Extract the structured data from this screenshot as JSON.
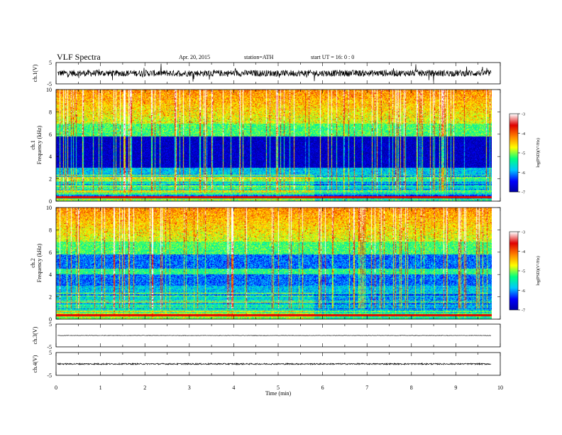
{
  "header": {
    "title": "VLF  Spectra",
    "date": "Apr. 20, 2015",
    "station": "station=ATH",
    "start": "start  UT  =    16: 0  : 0"
  },
  "chart_data": {
    "type": "heatmap",
    "xlabel": "Time  (min)",
    "xlim": [
      0,
      10
    ],
    "xticks": [
      "0",
      "1",
      "2",
      "3",
      "4",
      "5",
      "6",
      "7",
      "8",
      "9",
      "10"
    ],
    "data_end_min": 9.8,
    "transition_min": 5.8,
    "panels": [
      {
        "id": "ch1-waveform",
        "kind": "waveform",
        "ylabel": "ch.1(V)",
        "yticks": [
          "5",
          "-5"
        ],
        "ylim": [
          -5,
          5
        ],
        "amplitude": 1.5
      },
      {
        "id": "ch1-spectrogram",
        "kind": "spectrogram",
        "ylabel_ch": "ch.1",
        "ylabel": "Frequency  (kHz)",
        "yticks": [
          "10",
          "8",
          "6",
          "4",
          "2",
          "0"
        ],
        "ylim": [
          0,
          10
        ]
      },
      {
        "id": "ch2-spectrogram",
        "kind": "spectrogram",
        "ylabel_ch": "ch.2",
        "ylabel": "Frequency  (kHz)",
        "yticks": [
          "10",
          "8",
          "6",
          "4",
          "2",
          "0"
        ],
        "ylim": [
          0,
          10
        ]
      },
      {
        "id": "ch3-waveform",
        "kind": "waveform",
        "ylabel": "ch.3(V)",
        "yticks": [
          "5",
          "-5"
        ],
        "ylim": [
          -5,
          5
        ],
        "amplitude": 0.1
      },
      {
        "id": "ch4-waveform",
        "kind": "waveform",
        "ylabel": "ch.4(V)",
        "yticks": [
          "5",
          "-5"
        ],
        "ylim": [
          -5,
          5
        ],
        "amplitude": 0.3
      }
    ],
    "colorbar": {
      "label": "log(PSD)(V²/Hz)",
      "ticks": [
        "-3",
        "-4",
        "-5",
        "-6",
        "-7"
      ],
      "range": [
        -7,
        -3
      ],
      "colors": [
        "#0000a0",
        "#0000ff",
        "#00c8ff",
        "#00ff80",
        "#ffff00",
        "#ff8000",
        "#e00000",
        "#ffffff"
      ]
    }
  }
}
